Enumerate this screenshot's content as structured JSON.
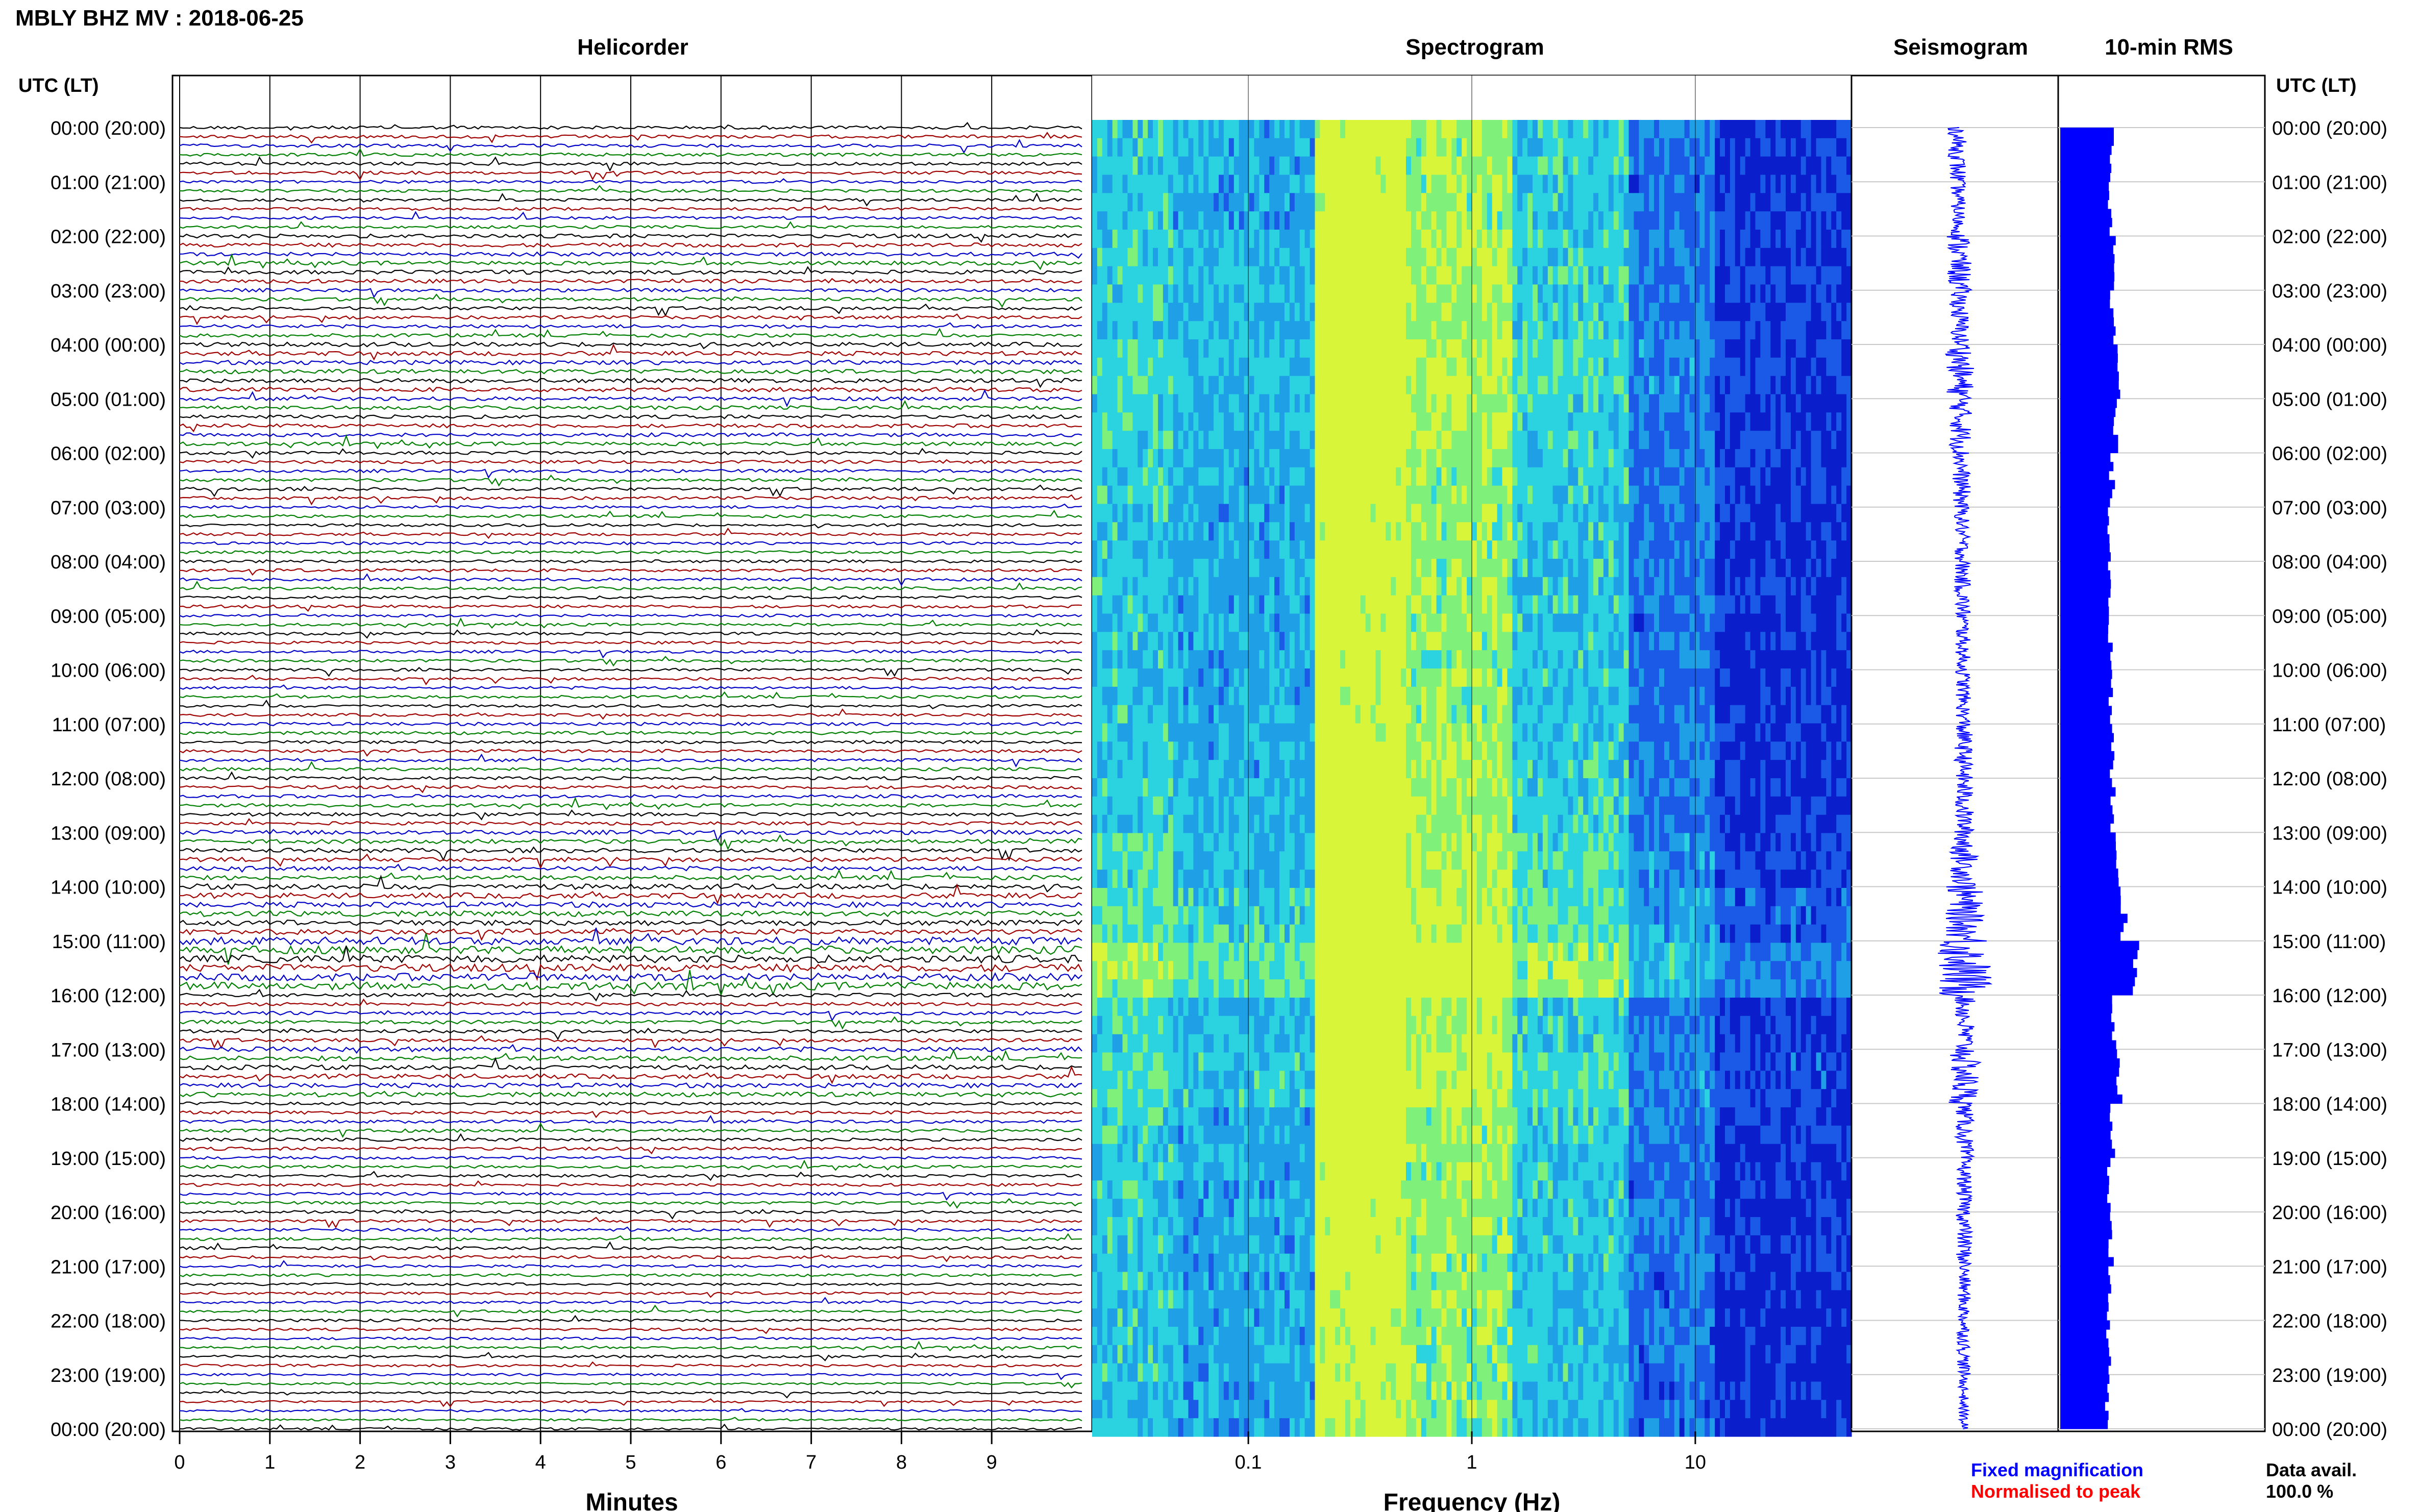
{
  "header": {
    "station_title": "MBLY BHZ MV : 2018-06-25",
    "panel_helicorder": "Helicorder",
    "panel_spectrogram": "Spectrogram",
    "panel_seismogram": "Seismogram",
    "panel_rms": "10-min RMS",
    "time_header_left": "UTC (LT)",
    "time_header_right": "UTC (LT)"
  },
  "footer": {
    "minutes_label": "Minutes",
    "frequency_label": "Frequency (Hz)",
    "legend_fixed": "Fixed magnification",
    "legend_normalised": "Normalised to peak",
    "data_avail_label": "Data avail.",
    "data_avail_value": "100.0 %"
  },
  "colors": {
    "trace_cycle": [
      "#000000",
      "#a00000",
      "#0000c8",
      "#008000"
    ],
    "fixed_magnification": "#0000ff",
    "normalised_to_peak": "#ff0000",
    "rms_fill": "#0000ff",
    "spectrogram_colormap": [
      "#0a1ecc",
      "#1a5ae6",
      "#1e9fe6",
      "#2bd2e0",
      "#7ff07a",
      "#d8f53a"
    ]
  },
  "chart_data": [
    {
      "type": "helicorder",
      "title": "Helicorder",
      "xlabel": "Minutes",
      "x_ticks": [
        "0",
        "1",
        "2",
        "3",
        "4",
        "5",
        "6",
        "7",
        "8",
        "9"
      ],
      "xlim": [
        0,
        10
      ],
      "rows": 144,
      "row_duration_minutes": 10,
      "y_tick_labels": [
        "00:00 (20:00)",
        "01:00 (21:00)",
        "02:00 (22:00)",
        "03:00 (23:00)",
        "04:00 (00:00)",
        "05:00 (01:00)",
        "06:00 (02:00)",
        "07:00 (03:00)",
        "08:00 (04:00)",
        "09:00 (05:00)",
        "10:00 (06:00)",
        "11:00 (07:00)",
        "12:00 (08:00)",
        "13:00 (09:00)",
        "14:00 (10:00)",
        "15:00 (11:00)",
        "16:00 (12:00)",
        "17:00 (13:00)",
        "18:00 (14:00)",
        "19:00 (15:00)",
        "20:00 (16:00)",
        "21:00 (17:00)",
        "22:00 (18:00)",
        "23:00 (19:00)",
        "00:00 (20:00)"
      ]
    },
    {
      "type": "heatmap",
      "title": "Spectrogram",
      "xlabel": "Frequency (Hz)",
      "x_scale": "log",
      "xlim": [
        0.02,
        50
      ],
      "x_ticks": [
        "0.1",
        "1",
        "10"
      ]
    },
    {
      "type": "line",
      "title": "Seismogram",
      "orientation": "vertical"
    },
    {
      "type": "bar",
      "title": "10-min RMS",
      "orientation": "horizontal",
      "hours": [
        0,
        1,
        2,
        3,
        4,
        5,
        6,
        7,
        8,
        9,
        10,
        11,
        12,
        13,
        14,
        15,
        16,
        17,
        18,
        19,
        20,
        21,
        22,
        23
      ],
      "relative_values": [
        0.52,
        0.5,
        0.56,
        0.53,
        0.58,
        0.55,
        0.52,
        0.5,
        0.51,
        0.5,
        0.5,
        0.52,
        0.53,
        0.58,
        0.64,
        0.76,
        0.54,
        0.6,
        0.52,
        0.5,
        0.51,
        0.49,
        0.49,
        0.47
      ]
    }
  ]
}
